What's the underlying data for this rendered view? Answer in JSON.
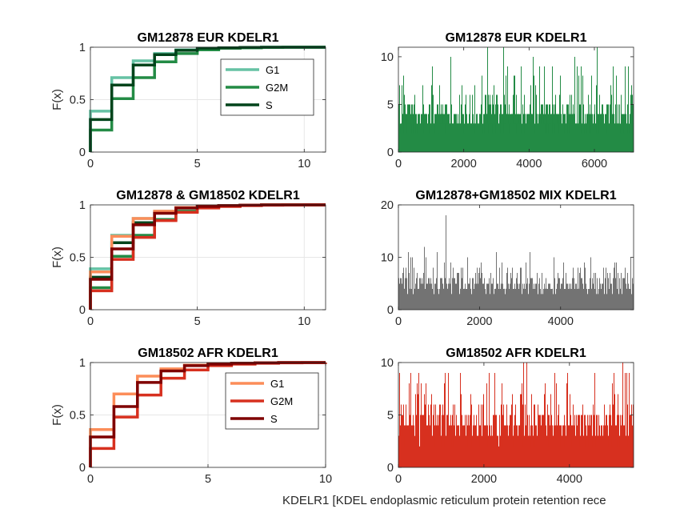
{
  "xlabel": "KDELR1 [KDEL endoplasmic reticulum protein retention rece",
  "colors": {
    "eur": [
      "#66c2a4",
      "#238b45",
      "#00441b"
    ],
    "afr": [
      "#fc8d59",
      "#d7301f",
      "#7f0000"
    ],
    "mix_bars": "#737373",
    "eur_bars": "#238b45",
    "afr_bars": "#d7301f"
  },
  "chart_data": [
    {
      "type": "line",
      "subtype": "ecdf-step",
      "title": "GM12878 EUR KDELR1",
      "ylabel": "F(x)",
      "xlim": [
        0,
        11
      ],
      "ylim": [
        0,
        1
      ],
      "xticks": [
        "0",
        "5",
        "10"
      ],
      "yticks": [
        "0",
        "0.5",
        "1"
      ],
      "grid": true,
      "legend": {
        "entries": [
          "G1",
          "G2M",
          "S"
        ],
        "position": "top-right"
      },
      "series": [
        {
          "name": "G1",
          "color": "#66c2a4",
          "x": [
            0,
            1,
            2,
            3,
            4,
            5,
            6,
            7,
            8,
            9,
            10,
            11
          ],
          "y": [
            0.39,
            0.71,
            0.87,
            0.94,
            0.975,
            0.99,
            0.995,
            0.998,
            1,
            1,
            1,
            1
          ]
        },
        {
          "name": "G2M",
          "color": "#238b45",
          "x": [
            0,
            1,
            2,
            3,
            4,
            5,
            6,
            7,
            8,
            9,
            10,
            11
          ],
          "y": [
            0.21,
            0.51,
            0.71,
            0.86,
            0.94,
            0.975,
            0.99,
            0.995,
            0.998,
            1,
            1,
            1
          ]
        },
        {
          "name": "S",
          "color": "#00441b",
          "x": [
            0,
            1,
            2,
            3,
            4,
            5,
            6,
            7,
            8,
            9,
            10,
            11
          ],
          "y": [
            0.31,
            0.64,
            0.83,
            0.93,
            0.97,
            0.99,
            0.995,
            0.998,
            1,
            1,
            1,
            1
          ]
        }
      ]
    },
    {
      "type": "bar",
      "title": "GM12878 EUR KDELR1",
      "xlim": [
        0,
        7200
      ],
      "ylim": [
        0,
        11
      ],
      "xticks": [
        "0",
        "2000",
        "4000",
        "6000"
      ],
      "yticks": [
        "0",
        "5",
        "10"
      ],
      "color": "#238b45",
      "n_cells": 7200,
      "distribution": [
        0.32,
        0.32,
        0.19,
        0.1,
        0.045,
        0.015,
        0.006,
        0.002,
        0.001,
        0.0005,
        0.0003,
        0.0002
      ],
      "peaks": [
        {
          "x": 2720,
          "y": 11
        },
        {
          "x": 1050,
          "y": 9
        },
        {
          "x": 4480,
          "y": 9
        },
        {
          "x": 5600,
          "y": 9
        },
        {
          "x": 5520,
          "y": 8
        },
        {
          "x": 2560,
          "y": 8
        },
        {
          "x": 3300,
          "y": 8
        },
        {
          "x": 4950,
          "y": 8
        }
      ]
    },
    {
      "type": "line",
      "subtype": "ecdf-step",
      "title": "GM12878 & GM18502 KDELR1",
      "ylabel": "F(x)",
      "xlim": [
        0,
        11
      ],
      "ylim": [
        0,
        1
      ],
      "xticks": [
        "0",
        "5",
        "10"
      ],
      "yticks": [
        "0",
        "0.5",
        "1"
      ],
      "grid": true,
      "series": [
        {
          "name": "G1",
          "color": "#66c2a4",
          "x": [
            0,
            1,
            2,
            3,
            4,
            5,
            6,
            7,
            8,
            9,
            10,
            11
          ],
          "y": [
            0.39,
            0.71,
            0.87,
            0.94,
            0.975,
            0.99,
            0.995,
            0.998,
            1,
            1,
            1,
            1
          ]
        },
        {
          "name": "G2M",
          "color": "#238b45",
          "x": [
            0,
            1,
            2,
            3,
            4,
            5,
            6,
            7,
            8,
            9,
            10,
            11
          ],
          "y": [
            0.21,
            0.51,
            0.71,
            0.86,
            0.94,
            0.975,
            0.99,
            0.995,
            0.998,
            1,
            1,
            1
          ]
        },
        {
          "name": "S",
          "color": "#00441b",
          "x": [
            0,
            1,
            2,
            3,
            4,
            5,
            6,
            7,
            8,
            9,
            10,
            11
          ],
          "y": [
            0.31,
            0.64,
            0.83,
            0.93,
            0.97,
            0.99,
            0.995,
            0.998,
            1,
            1,
            1,
            1
          ]
        },
        {
          "name": "G1",
          "color": "#fc8d59",
          "x": [
            0,
            1,
            2,
            3,
            4,
            5,
            6,
            7,
            8,
            9,
            10
          ],
          "y": [
            0.36,
            0.7,
            0.87,
            0.94,
            0.975,
            0.99,
            0.995,
            0.998,
            1,
            1,
            1
          ]
        },
        {
          "name": "G2M",
          "color": "#d7301f",
          "x": [
            0,
            1,
            2,
            3,
            4,
            5,
            6,
            7,
            8,
            9,
            10
          ],
          "y": [
            0.18,
            0.48,
            0.69,
            0.85,
            0.93,
            0.97,
            0.985,
            0.993,
            0.997,
            0.999,
            1
          ]
        },
        {
          "name": "S",
          "color": "#7f0000",
          "x": [
            0,
            1,
            2,
            3,
            4,
            5,
            6,
            7,
            8,
            9,
            10
          ],
          "y": [
            0.29,
            0.58,
            0.81,
            0.92,
            0.97,
            0.985,
            0.993,
            0.997,
            1,
            1,
            1
          ]
        }
      ]
    },
    {
      "type": "bar",
      "title": "GM12878+GM18502 MIX KDELR1",
      "xlim": [
        0,
        5800
      ],
      "ylim": [
        0,
        20
      ],
      "xticks": [
        "0",
        "2000",
        "4000"
      ],
      "yticks": [
        "0",
        "10",
        "20"
      ],
      "color": "#737373",
      "n_cells": 5800,
      "distribution": [
        0.3,
        0.3,
        0.2,
        0.1,
        0.05,
        0.025,
        0.012,
        0.006,
        0.003,
        0.002,
        0.001,
        0.0005
      ],
      "peaks": [
        {
          "x": 1180,
          "y": 18
        },
        {
          "x": 650,
          "y": 12
        },
        {
          "x": 950,
          "y": 11
        },
        {
          "x": 300,
          "y": 10
        },
        {
          "x": 1700,
          "y": 10
        },
        {
          "x": 4750,
          "y": 10
        },
        {
          "x": 3150,
          "y": 9
        },
        {
          "x": 2050,
          "y": 9
        }
      ]
    },
    {
      "type": "line",
      "subtype": "ecdf-step",
      "title": "GM18502 AFR KDELR1",
      "ylabel": "F(x)",
      "xlim": [
        0,
        10
      ],
      "ylim": [
        0,
        1
      ],
      "xticks": [
        "0",
        "5",
        "10"
      ],
      "yticks": [
        "0",
        "0.5",
        "1"
      ],
      "grid": true,
      "legend": {
        "entries": [
          "G1",
          "G2M",
          "S"
        ],
        "position": "top-right"
      },
      "series": [
        {
          "name": "G1",
          "color": "#fc8d59",
          "x": [
            0,
            1,
            2,
            3,
            4,
            5,
            6,
            7,
            8,
            9,
            10
          ],
          "y": [
            0.36,
            0.7,
            0.87,
            0.94,
            0.975,
            0.99,
            0.995,
            0.998,
            1,
            1,
            1
          ]
        },
        {
          "name": "G2M",
          "color": "#d7301f",
          "x": [
            0,
            1,
            2,
            3,
            4,
            5,
            6,
            7,
            8,
            9,
            10
          ],
          "y": [
            0.18,
            0.48,
            0.69,
            0.85,
            0.93,
            0.97,
            0.985,
            0.993,
            0.997,
            0.999,
            1
          ]
        },
        {
          "name": "S",
          "color": "#7f0000",
          "x": [
            0,
            1,
            2,
            3,
            4,
            5,
            6,
            7,
            8,
            9,
            10
          ],
          "y": [
            0.29,
            0.58,
            0.81,
            0.92,
            0.97,
            0.985,
            0.993,
            0.997,
            1,
            1,
            1
          ]
        }
      ]
    },
    {
      "type": "bar",
      "title": "GM18502 AFR KDELR1",
      "xlim": [
        0,
        5500
      ],
      "ylim": [
        0,
        10
      ],
      "xticks": [
        "0",
        "2000",
        "4000"
      ],
      "yticks": [
        "0",
        "5",
        "10"
      ],
      "color": "#d7301f",
      "n_cells": 5500,
      "distribution": [
        0.29,
        0.3,
        0.21,
        0.11,
        0.05,
        0.022,
        0.01,
        0.005,
        0.002,
        0.001,
        0.0005
      ],
      "peaks": [
        {
          "x": 3000,
          "y": 10
        },
        {
          "x": 5250,
          "y": 10
        },
        {
          "x": 470,
          "y": 9
        },
        {
          "x": 1450,
          "y": 9
        },
        {
          "x": 2250,
          "y": 9
        },
        {
          "x": 3950,
          "y": 9
        },
        {
          "x": 4600,
          "y": 9
        },
        {
          "x": 5350,
          "y": 9
        }
      ]
    }
  ]
}
